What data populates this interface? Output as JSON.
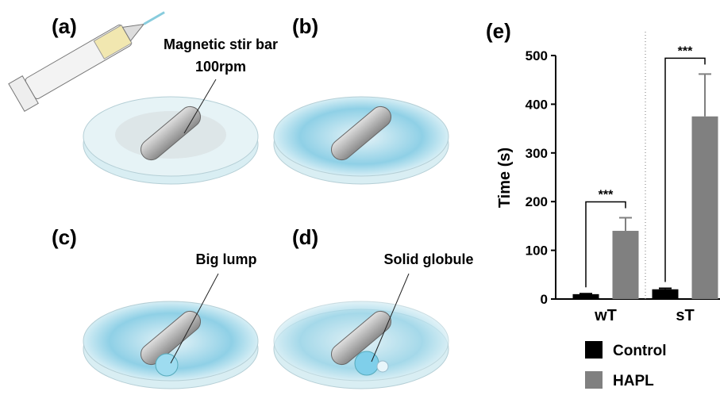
{
  "panels": {
    "a": {
      "label": "(a)",
      "annotation": "Magnetic stir bar",
      "annotation_2": "100rpm"
    },
    "b": {
      "label": "(b)"
    },
    "c": {
      "label": "(c)",
      "annotation": "Big lump"
    },
    "d": {
      "label": "(d)",
      "annotation": "Solid globule"
    }
  },
  "chart_data": {
    "type": "bar",
    "title": "(e)",
    "y_label": "Time (s)",
    "categories": [
      "wT",
      "sT"
    ],
    "series": [
      {
        "name": "Control",
        "color": "#000000",
        "values": [
          10,
          20
        ],
        "errors": [
          1,
          2
        ]
      },
      {
        "name": "HAPL",
        "color": "#808080",
        "values": [
          140,
          375
        ],
        "errors": [
          27,
          87
        ]
      }
    ],
    "annotations": [
      "***",
      "***"
    ],
    "ylim": [
      0,
      500
    ],
    "yticks": [
      0,
      100,
      200,
      300,
      400,
      500
    ],
    "legend": "bottom"
  }
}
